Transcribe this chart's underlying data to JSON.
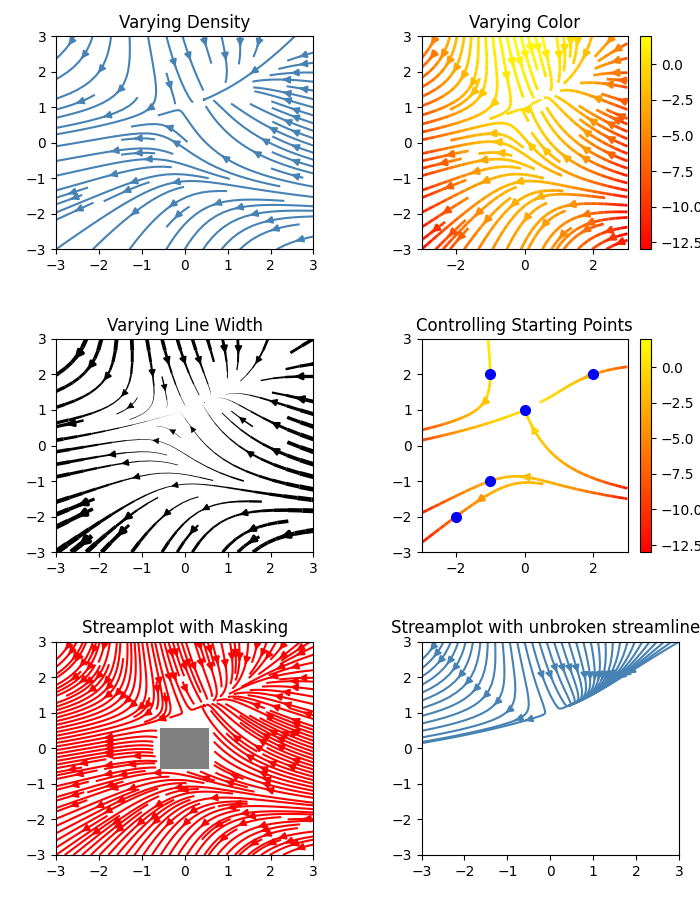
{
  "title1": "Varying Density",
  "title2": "Varying Color",
  "title3": "Varying Line Width",
  "title4": "Controlling Starting Points",
  "title5": "Streamplot with Masking",
  "title6": "Streamplot with unbroken streamlines",
  "colorbar_ticks": [
    0.0,
    -2.5,
    -5.0,
    -7.5,
    -10.0,
    -12.5
  ],
  "seed4_x": [
    -1,
    2,
    0,
    -1,
    -2
  ],
  "seed4_y": [
    2,
    2,
    1,
    -1,
    -2
  ],
  "mask_xi": 40,
  "mask_xf": 60,
  "mask_yi": 40,
  "mask_yf": 60
}
